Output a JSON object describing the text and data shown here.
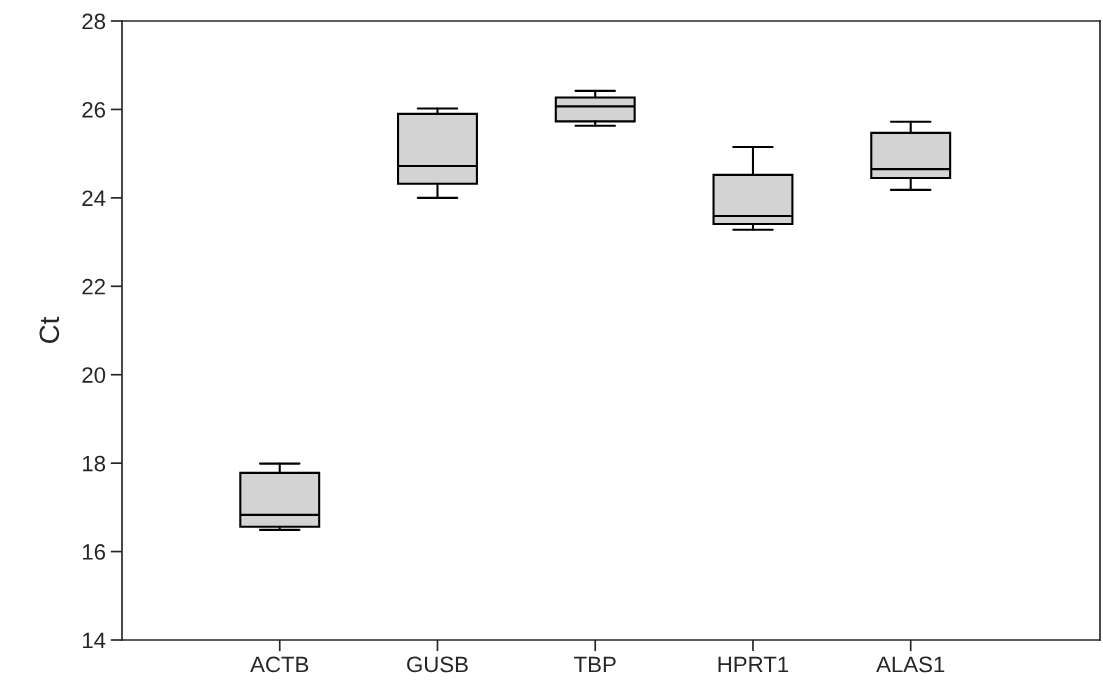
{
  "chart_data": {
    "type": "box",
    "ylabel": "Ct",
    "categories": [
      "ACTB",
      "GUSB",
      "TBP",
      "HPRT1",
      "ALAS1"
    ],
    "boxes": [
      {
        "low": 16.49,
        "q1": 16.56,
        "median": 16.83,
        "q3": 17.78,
        "high": 17.99
      },
      {
        "low": 24.0,
        "q1": 24.32,
        "median": 24.72,
        "q3": 25.9,
        "high": 26.02
      },
      {
        "low": 25.63,
        "q1": 25.73,
        "median": 26.07,
        "q3": 26.27,
        "high": 26.42
      },
      {
        "low": 23.28,
        "q1": 23.41,
        "median": 23.59,
        "q3": 24.52,
        "high": 25.15
      },
      {
        "low": 24.18,
        "q1": 24.45,
        "median": 24.65,
        "q3": 25.47,
        "high": 25.72
      }
    ],
    "color": "#d3d3d3",
    "ylim": [
      14,
      28
    ],
    "yticks": [
      14,
      16,
      18,
      20,
      22,
      24,
      26,
      28
    ],
    "grid": false,
    "legend": false
  }
}
